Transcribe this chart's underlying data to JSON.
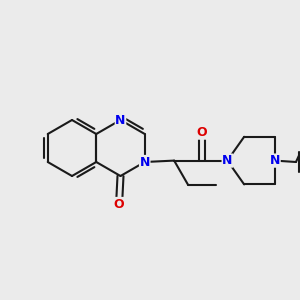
{
  "background_color": "#ebebeb",
  "bond_color": "#1a1a1a",
  "N_color": "#0000ee",
  "O_color": "#dd0000",
  "bond_width": 1.5,
  "font_size_atom": 9,
  "figsize": [
    3.0,
    3.0
  ],
  "dpi": 100,
  "xlim": [
    0,
    300
  ],
  "ylim": [
    0,
    300
  ]
}
